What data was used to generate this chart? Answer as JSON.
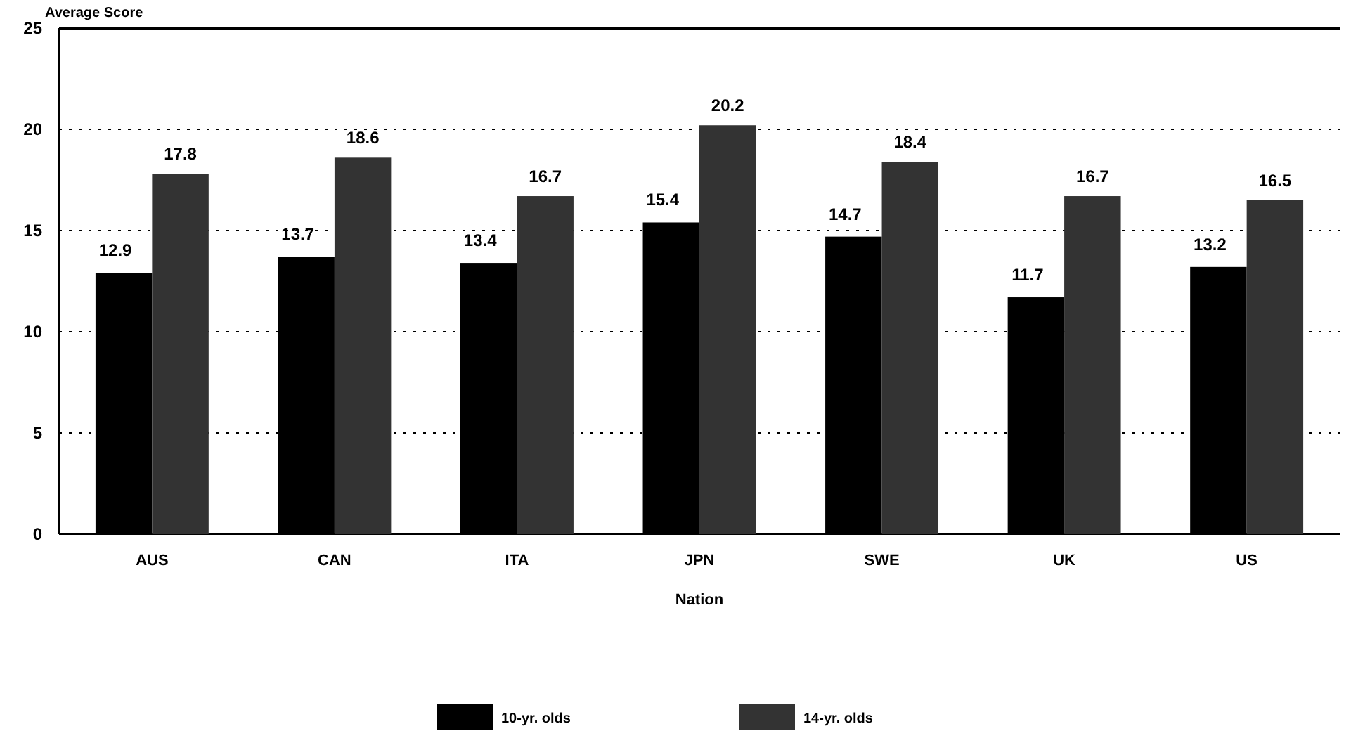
{
  "chart_data": {
    "type": "bar",
    "ylabel": "Average Score",
    "xlabel": "Nation",
    "categories": [
      "AUS",
      "CAN",
      "ITA",
      "JPN",
      "SWE",
      "UK",
      "US"
    ],
    "series": [
      {
        "name": "10-yr. olds",
        "color": "#000000",
        "values": [
          12.9,
          13.7,
          13.4,
          15.4,
          14.7,
          11.7,
          13.2
        ]
      },
      {
        "name": "14-yr. olds",
        "color": "#333333",
        "values": [
          17.8,
          18.6,
          16.7,
          20.2,
          18.4,
          16.7,
          16.5
        ]
      }
    ],
    "ylim": [
      0,
      25
    ],
    "yticks": [
      0,
      5,
      10,
      15,
      20,
      25
    ],
    "grid": "y",
    "data_labels": true,
    "legend": "bottom"
  }
}
